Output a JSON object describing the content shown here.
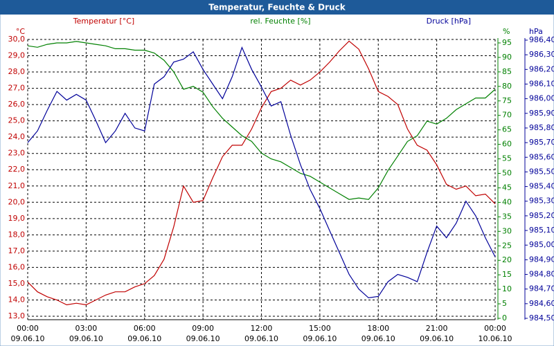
{
  "chart_data": {
    "type": "line",
    "title": "Temperatur, Feuchte & Druck",
    "y_label": "Temperatur [°C]",
    "y_unit": "°C",
    "y2_label": "rel. Feuchte [%]",
    "y2_unit": "%",
    "y3_label": "Druck [hPa]",
    "y3_unit": "hPa",
    "grid": true,
    "xlim": [
      0,
      24
    ],
    "xticks": [
      {
        "value": 0,
        "label": "00:00"
      },
      {
        "value": 3,
        "label": "03:00"
      },
      {
        "value": 6,
        "label": "06:00"
      },
      {
        "value": 9,
        "label": "09:00"
      },
      {
        "value": 12,
        "label": "12:00"
      },
      {
        "value": 15,
        "label": "15:00"
      },
      {
        "value": 18,
        "label": "18:00"
      },
      {
        "value": 21,
        "label": "21:00"
      },
      {
        "value": 24,
        "label": "00:00"
      }
    ],
    "xtick_dates": [
      "09.06.10",
      "09.06.10",
      "09.06.10",
      "09.06.10",
      "09.06.10",
      "09.06.10",
      "09.06.10",
      "09.06.10",
      "10.06.10"
    ],
    "ylim": [
      13,
      30
    ],
    "yticks": [
      {
        "value": 13,
        "label": "13,0"
      },
      {
        "value": 14,
        "label": "14,0"
      },
      {
        "value": 15,
        "label": "15,0"
      },
      {
        "value": 16,
        "label": "16,0"
      },
      {
        "value": 17,
        "label": "17,0"
      },
      {
        "value": 18,
        "label": "18,0"
      },
      {
        "value": 19,
        "label": "19,0"
      },
      {
        "value": 20,
        "label": "20,0"
      },
      {
        "value": 21,
        "label": "21,0"
      },
      {
        "value": 22,
        "label": "22,0"
      },
      {
        "value": 23,
        "label": "23,0"
      },
      {
        "value": 24,
        "label": "24,0"
      },
      {
        "value": 25,
        "label": "25,0"
      },
      {
        "value": 26,
        "label": "26,0"
      },
      {
        "value": 27,
        "label": "27,0"
      },
      {
        "value": 28,
        "label": "28,0"
      },
      {
        "value": 29,
        "label": "29,0"
      },
      {
        "value": 30,
        "label": "30,0"
      }
    ],
    "y2lim": [
      0,
      95
    ],
    "y2ticks": [
      0,
      5,
      10,
      15,
      20,
      25,
      30,
      35,
      40,
      45,
      50,
      55,
      60,
      65,
      70,
      75,
      80,
      85,
      90,
      95
    ],
    "y3lim": [
      984.5,
      986.4
    ],
    "y3ticks": [
      {
        "value": 984.5,
        "label": "984,50"
      },
      {
        "value": 984.6,
        "label": "984,60"
      },
      {
        "value": 984.7,
        "label": "984,70"
      },
      {
        "value": 984.8,
        "label": "984,80"
      },
      {
        "value": 984.9,
        "label": "984,90"
      },
      {
        "value": 985.0,
        "label": "985,00"
      },
      {
        "value": 985.1,
        "label": "985,10"
      },
      {
        "value": 985.2,
        "label": "985,20"
      },
      {
        "value": 985.3,
        "label": "985,30"
      },
      {
        "value": 985.4,
        "label": "985,40"
      },
      {
        "value": 985.5,
        "label": "985,50"
      },
      {
        "value": 985.6,
        "label": "985,60"
      },
      {
        "value": 985.7,
        "label": "985,70"
      },
      {
        "value": 985.8,
        "label": "985,80"
      },
      {
        "value": 985.9,
        "label": "985,90"
      },
      {
        "value": 986.0,
        "label": "986,00"
      },
      {
        "value": 986.1,
        "label": "986,10"
      },
      {
        "value": 986.2,
        "label": "986,20"
      },
      {
        "value": 986.3,
        "label": "986,30"
      },
      {
        "value": 986.4,
        "label": "986,40"
      }
    ],
    "x": [
      0,
      0.5,
      1,
      1.5,
      2,
      2.5,
      3,
      3.5,
      4,
      4.5,
      5,
      5.5,
      6,
      6.5,
      7,
      7.5,
      8,
      8.5,
      9,
      9.5,
      10,
      10.5,
      11,
      11.5,
      12,
      12.5,
      13,
      13.5,
      14,
      14.5,
      15,
      15.5,
      16,
      16.5,
      17,
      17.5,
      18,
      18.5,
      19,
      19.5,
      20,
      20.5,
      21,
      21.5,
      22,
      22.5,
      23,
      23.5,
      24
    ],
    "series": [
      {
        "name": "Temperatur [°C]",
        "color": "#c00000",
        "axis": "y",
        "values": [
          15.1,
          14.5,
          14.2,
          14.0,
          13.7,
          13.8,
          13.7,
          14.0,
          14.3,
          14.5,
          14.5,
          14.8,
          15.0,
          15.5,
          16.5,
          18.5,
          21.0,
          20.0,
          20.1,
          21.5,
          22.8,
          23.5,
          23.5,
          24.5,
          25.8,
          26.8,
          27.0,
          27.5,
          27.2,
          27.5,
          28.0,
          28.6,
          29.3,
          29.9,
          29.4,
          28.2,
          26.8,
          26.5,
          26.0,
          24.5,
          23.5,
          23.2,
          22.3,
          21.1,
          20.8,
          21.0,
          20.4,
          20.5,
          19.9
        ]
      },
      {
        "name": "rel. Feuchte [%]",
        "color": "#008000",
        "axis": "y2",
        "values": [
          94,
          93.5,
          94.5,
          95,
          95,
          95.5,
          95,
          94.5,
          94,
          93,
          93,
          92.5,
          92.5,
          91.5,
          89,
          85,
          79,
          80,
          78,
          73,
          69,
          66,
          63,
          61,
          57,
          55,
          54,
          52,
          50,
          49,
          47,
          45,
          43,
          41,
          41.5,
          41,
          45,
          51,
          56,
          61,
          63,
          68,
          67,
          69,
          72,
          74,
          76,
          76,
          79
        ]
      },
      {
        "name": "Druck [hPa]",
        "color": "#000099",
        "axis": "y3",
        "values": [
          985.7,
          985.78,
          985.92,
          986.05,
          985.99,
          986.03,
          985.99,
          985.85,
          985.7,
          985.78,
          985.9,
          985.8,
          985.78,
          986.1,
          986.15,
          986.25,
          986.27,
          986.32,
          986.2,
          986.1,
          986.0,
          986.15,
          986.35,
          986.2,
          986.08,
          985.95,
          985.98,
          985.75,
          985.55,
          985.38,
          985.25,
          985.1,
          984.95,
          984.8,
          984.7,
          984.64,
          984.65,
          984.75,
          984.8,
          984.78,
          984.75,
          984.95,
          985.13,
          985.05,
          985.15,
          985.3,
          985.2,
          985.05,
          984.92
        ]
      }
    ]
  }
}
